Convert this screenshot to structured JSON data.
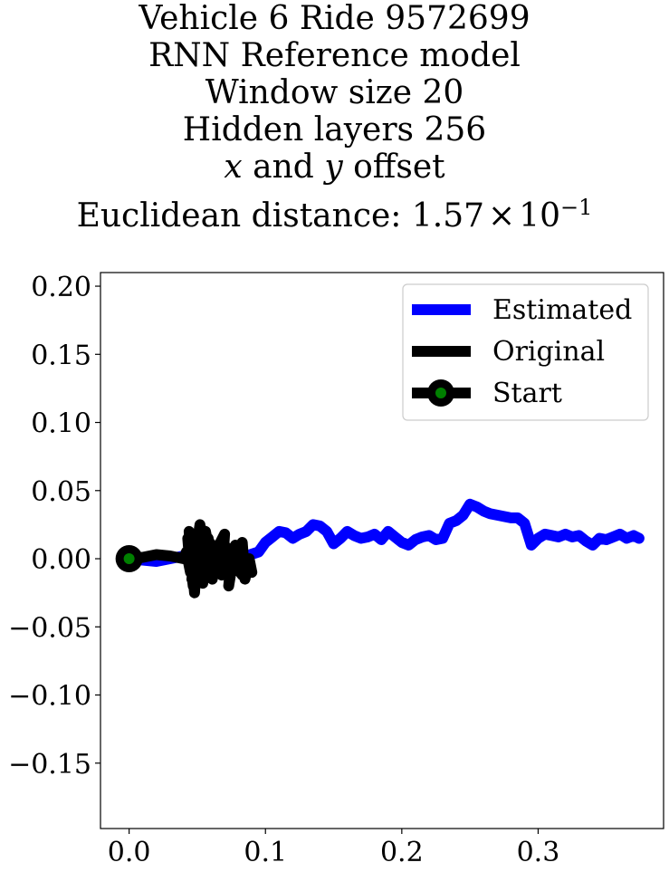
{
  "chart_data": {
    "type": "line",
    "title_lines": [
      "Vehicle 6 Ride 9572699",
      "RNN Reference model",
      "Window size 20",
      "Hidden layers 256"
    ],
    "title_offset": {
      "var_x": "x",
      "conj": "and",
      "var_y": "y",
      "word": "offset"
    },
    "title_distance": {
      "prefix": "Euclidean distance: ",
      "mantissa": "1.57",
      "times": "×",
      "base": "10",
      "exponent": "−1"
    },
    "xlim": [
      -0.021,
      0.392
    ],
    "ylim": [
      -0.198,
      0.21
    ],
    "x_ticks": [
      0.0,
      0.1,
      0.2,
      0.3
    ],
    "x_tick_labels": [
      "0.0",
      "0.1",
      "0.2",
      "0.3"
    ],
    "y_ticks": [
      0.2,
      0.15,
      0.1,
      0.05,
      0.0,
      -0.05,
      -0.1,
      -0.15
    ],
    "y_tick_labels": [
      "0.20",
      "0.15",
      "0.10",
      "0.05",
      "0.00",
      "−0.05",
      "−0.10",
      "−0.15"
    ],
    "grid": false,
    "legend_position": "top-right",
    "series": [
      {
        "name": "Estimated",
        "color": "#0000ff",
        "x": [
          0.0,
          0.02,
          0.04,
          0.06,
          0.08,
          0.095,
          0.1,
          0.105,
          0.11,
          0.115,
          0.12,
          0.125,
          0.13,
          0.135,
          0.14,
          0.145,
          0.15,
          0.155,
          0.16,
          0.165,
          0.17,
          0.175,
          0.18,
          0.185,
          0.19,
          0.195,
          0.2,
          0.205,
          0.21,
          0.215,
          0.22,
          0.225,
          0.23,
          0.235,
          0.24,
          0.245,
          0.25,
          0.255,
          0.26,
          0.265,
          0.27,
          0.275,
          0.28,
          0.285,
          0.29,
          0.295,
          0.3,
          0.305,
          0.31,
          0.315,
          0.32,
          0.325,
          0.33,
          0.335,
          0.34,
          0.345,
          0.35,
          0.355,
          0.36,
          0.365,
          0.37,
          0.374
        ],
        "y": [
          0.0,
          -0.002,
          0.002,
          0.001,
          0.0,
          0.005,
          0.012,
          0.016,
          0.02,
          0.019,
          0.015,
          0.018,
          0.02,
          0.025,
          0.024,
          0.02,
          0.011,
          0.015,
          0.02,
          0.017,
          0.015,
          0.016,
          0.018,
          0.014,
          0.02,
          0.016,
          0.012,
          0.01,
          0.014,
          0.016,
          0.017,
          0.014,
          0.015,
          0.026,
          0.028,
          0.032,
          0.04,
          0.038,
          0.035,
          0.033,
          0.032,
          0.031,
          0.03,
          0.03,
          0.026,
          0.01,
          0.015,
          0.018,
          0.017,
          0.016,
          0.018,
          0.016,
          0.017,
          0.013,
          0.01,
          0.015,
          0.014,
          0.016,
          0.018,
          0.015,
          0.017,
          0.015
        ]
      },
      {
        "name": "Original",
        "color": "#000000",
        "x": [
          0.0,
          0.01,
          0.02,
          0.03,
          0.04,
          0.042,
          0.045,
          0.043,
          0.047,
          0.044,
          0.048,
          0.05,
          0.046,
          0.052,
          0.049,
          0.055,
          0.051,
          0.053,
          0.057,
          0.054,
          0.058,
          0.06,
          0.056,
          0.062,
          0.059,
          0.065,
          0.061,
          0.066,
          0.07,
          0.068,
          0.072,
          0.075,
          0.073,
          0.078,
          0.08,
          0.083,
          0.085,
          0.088,
          0.09,
          0.087,
          0.083,
          0.08
        ],
        "y": [
          0.0,
          0.001,
          0.003,
          0.002,
          0.0,
          0.005,
          -0.01,
          0.015,
          -0.02,
          0.02,
          -0.025,
          0.01,
          -0.015,
          0.025,
          -0.005,
          0.018,
          -0.012,
          0.022,
          0.0,
          -0.018,
          0.015,
          -0.008,
          0.02,
          -0.01,
          0.012,
          0.005,
          -0.015,
          0.01,
          0.018,
          -0.012,
          0.008,
          0.0,
          -0.02,
          0.01,
          -0.005,
          0.012,
          -0.015,
          0.0,
          -0.01,
          -0.005,
          -0.012,
          -0.008
        ]
      }
    ],
    "start": {
      "name": "Start",
      "x": 0.0,
      "y": 0.0,
      "marker_edge": "#000000",
      "marker_face": "#008000"
    }
  }
}
